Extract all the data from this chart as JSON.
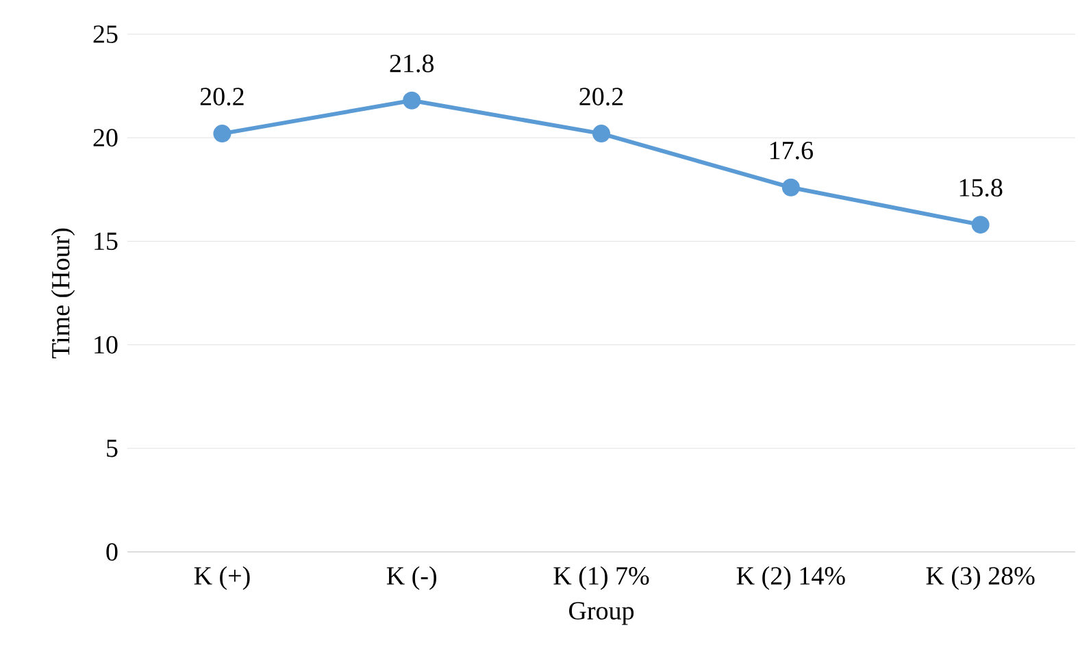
{
  "chart_data": {
    "type": "line",
    "xlabel": "Group",
    "ylabel": "Time (Hour)",
    "categories": [
      "K (+)",
      "K (-)",
      "K (1) 7%",
      "K (2) 14%",
      "K (3) 28%"
    ],
    "series": [
      {
        "color": "#5b9bd5",
        "values": [
          20.2,
          21.8,
          20.2,
          17.6,
          15.8
        ]
      }
    ],
    "ylim": [
      0,
      25
    ],
    "yticks": [
      0,
      5,
      10,
      15,
      20,
      25
    ],
    "grid": "y",
    "marker": "circle",
    "line_style": "solid",
    "data_labels": true
  }
}
